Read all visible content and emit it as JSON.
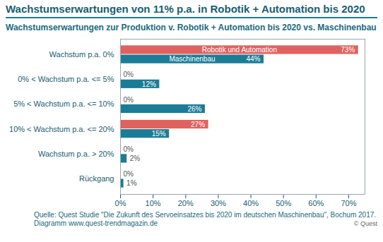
{
  "chart_data": {
    "type": "bar",
    "orientation": "horizontal",
    "title": "Wachstumserwartungen von 11% p.a.  in Robotik + Automation bis 2020",
    "subtitle": "Wachstumserwartungen zur Produktion v. Robotik + Automation bis 2020 vs. Maschinenbau",
    "source": "Quelle: Quest Studie \"Die Zukunft des Servoeinsatzes bis 2020 im deutschen Maschinenbau\", Bochum 2017.",
    "caption": "Diagramm  www.quest-trendmagazin.de",
    "credit": "© Quest",
    "categories": [
      "Wachstum p.a. 0%",
      "0% < Wachstum p.a. <= 5%",
      "5% < Wachstum p.a. <= 10%",
      "10% < Wachstum p.a. <= 20%",
      "Wachstum p.a. > 20%",
      "Rückgang"
    ],
    "series": [
      {
        "name": "Robotik und Automation",
        "color": "#e0625f",
        "values": [
          73,
          0,
          0,
          27,
          0,
          0
        ],
        "value_labels": [
          "73%",
          "0%",
          "0%",
          "27%",
          "0%",
          "0%"
        ]
      },
      {
        "name": "Maschinenbau",
        "color": "#1b7c97",
        "values": [
          44,
          12,
          26,
          15,
          2,
          1
        ],
        "value_labels": [
          "44%",
          "12%",
          "26%",
          "15%",
          "2%",
          "1%"
        ]
      }
    ],
    "xlim": [
      0,
      75
    ],
    "xticks": [
      {
        "value": 0,
        "label": "0%"
      },
      {
        "value": 10,
        "label": "10%"
      },
      {
        "value": 20,
        "label": "20%"
      },
      {
        "value": 30,
        "label": "30%"
      },
      {
        "value": 40,
        "label": "40%"
      },
      {
        "value": 50,
        "label": "50%"
      },
      {
        "value": 60,
        "label": "60%"
      },
      {
        "value": 70,
        "label": "70%"
      }
    ],
    "grid": false,
    "data_labels": true
  }
}
